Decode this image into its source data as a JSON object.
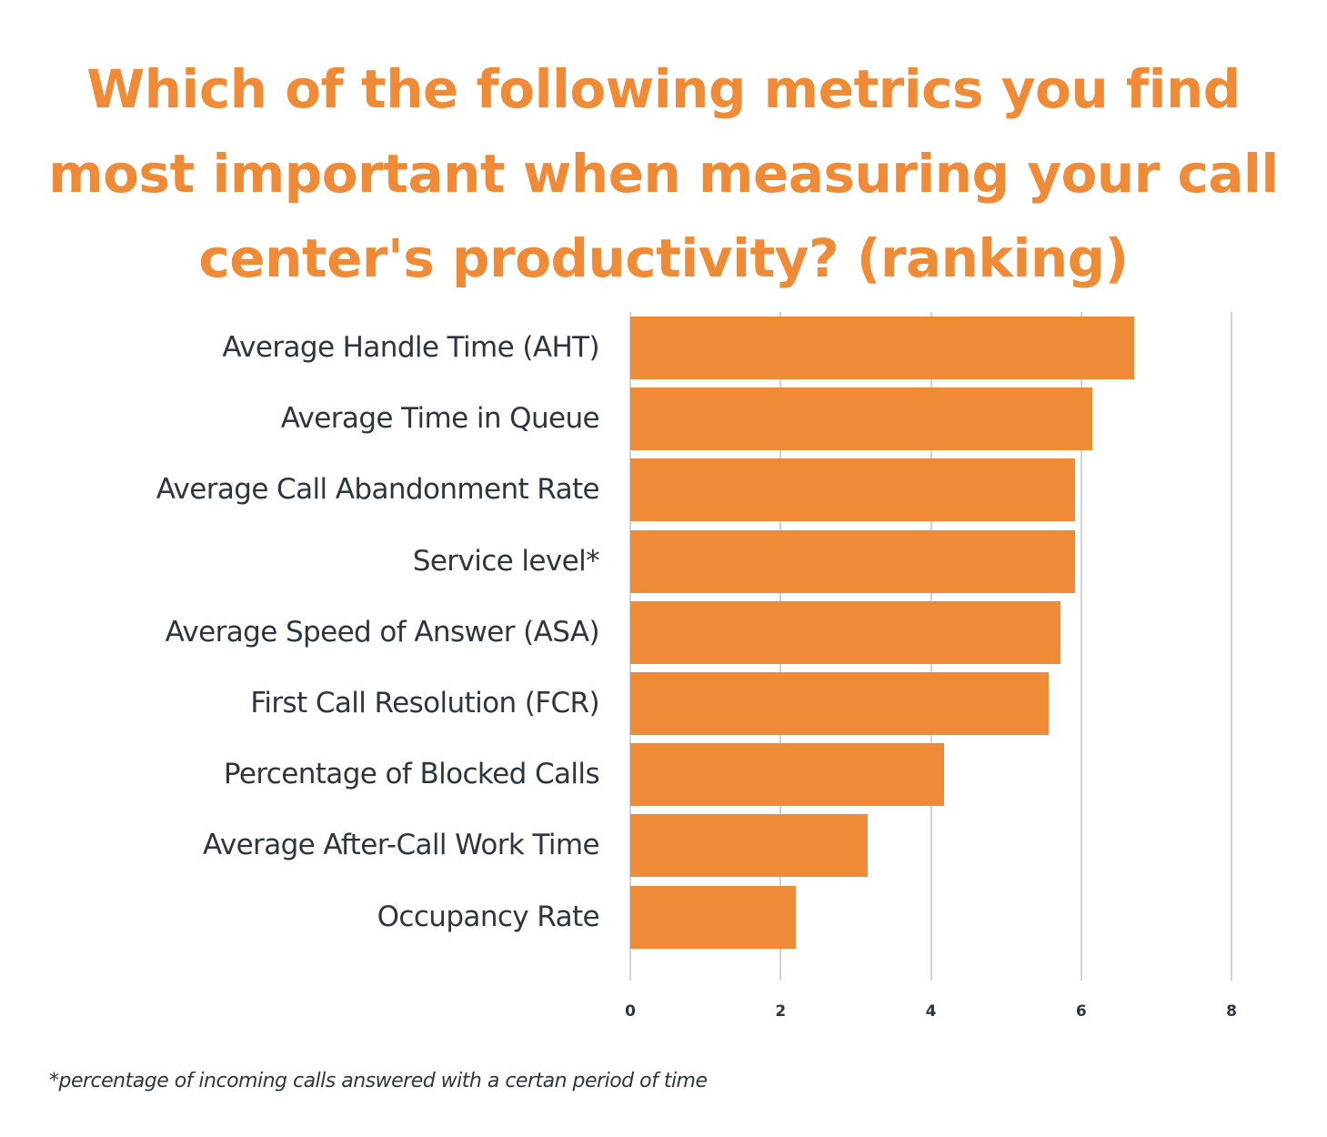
{
  "title_lines": [
    "Which of the following metrics you find",
    "most important when measuring your call",
    "center's productivity? (ranking)"
  ],
  "footnote": "*percentage of incoming calls answered with a certan period of time",
  "colors": {
    "bar": "#ef8a36",
    "title": "#ef8a36",
    "text": "#2b3640",
    "grid": "#d2d2d2"
  },
  "chart_data": {
    "type": "bar",
    "orientation": "horizontal",
    "title": "Which of the following metrics you find most important when measuring your call center's productivity? (ranking)",
    "categories": [
      "Average Handle Time (AHT)",
      "Average Time in Queue",
      "Average Call Abandonment Rate",
      "Service level*",
      "Average Speed of Answer (ASA)",
      "First Call Resolution (FCR)",
      "Percentage of Blocked Calls",
      "Average After-Call Work Time",
      "Occupancy Rate"
    ],
    "values": [
      6.7,
      6.15,
      5.92,
      5.92,
      5.72,
      5.57,
      4.17,
      3.16,
      2.2
    ],
    "xlabel": "",
    "ylabel": "",
    "xlim": [
      0,
      8
    ],
    "xticks": [
      "0",
      "2",
      "4",
      "6",
      "8"
    ],
    "grid": true,
    "legend": null,
    "annotations": [
      "*percentage of incoming calls answered with a certan period of time"
    ]
  }
}
